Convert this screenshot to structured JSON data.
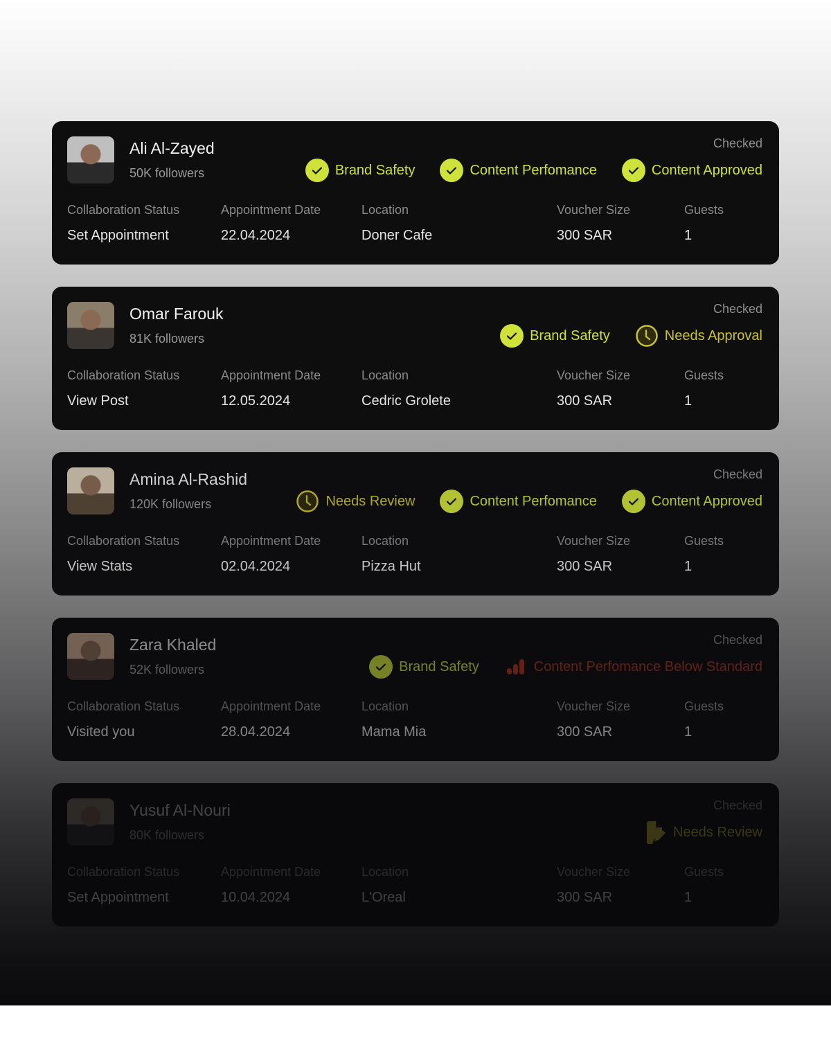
{
  "colors": {
    "accent": "#cfe23a",
    "pending": "#c9c12f",
    "warning": "#a8341f",
    "card": "#0e0e0f"
  },
  "column_labels": {
    "status": "Collaboration Status",
    "date": "Appointment Date",
    "location": "Location",
    "voucher": "Voucher Size",
    "guests": "Guests"
  },
  "cards": [
    {
      "name": "Ali Al-Zayed",
      "followers": "50K followers",
      "checked": "Checked",
      "badges": [
        {
          "icon": "check-circle-icon",
          "label": "Brand Safety",
          "tone": "accent"
        },
        {
          "icon": "check-circle-icon",
          "label": "Content Perfomance",
          "tone": "accent"
        },
        {
          "icon": "check-circle-icon",
          "label": "Content Approved",
          "tone": "accent"
        }
      ],
      "status": "Set Appointment",
      "date": "22.04.2024",
      "location": "Doner Cafe",
      "voucher": "300 SAR",
      "guests": "1"
    },
    {
      "name": "Omar Farouk",
      "followers": "81K followers",
      "checked": "Checked",
      "badges": [
        {
          "icon": "check-circle-icon",
          "label": "Brand Safety",
          "tone": "accent"
        },
        {
          "icon": "clock-icon",
          "label": "Needs Approval",
          "tone": "pending"
        }
      ],
      "status": "View Post",
      "date": "12.05.2024",
      "location": "Cedric Grolete",
      "voucher": "300 SAR",
      "guests": "1"
    },
    {
      "name": "Amina Al-Rashid",
      "followers": "120K followers",
      "checked": "Checked",
      "badges": [
        {
          "icon": "clock-icon",
          "label": "Needs Review",
          "tone": "pending"
        },
        {
          "icon": "check-circle-icon",
          "label": "Content Perfomance",
          "tone": "accent"
        },
        {
          "icon": "check-circle-icon",
          "label": "Content Approved",
          "tone": "accent"
        }
      ],
      "status": "View Stats",
      "date": "02.04.2024",
      "location": "Pizza Hut",
      "voucher": "300 SAR",
      "guests": "1"
    },
    {
      "name": "Zara Khaled",
      "followers": "52K followers",
      "checked": "Checked",
      "badges": [
        {
          "icon": "check-circle-icon",
          "label": "Brand Safety",
          "tone": "accent"
        },
        {
          "icon": "bar-chart-icon",
          "label": "Content Perfomance Below Standard",
          "tone": "warning"
        }
      ],
      "status": "Visited you",
      "date": "28.04.2024",
      "location": "Mama Mia",
      "voucher": "300 SAR",
      "guests": "1"
    },
    {
      "name": "Yusuf Al-Nouri",
      "followers": "80K followers",
      "checked": "Checked",
      "badges": [
        {
          "icon": "document-edit-icon",
          "label": "Needs Review",
          "tone": "pending"
        }
      ],
      "status": "Set Appointment",
      "date": "10.04.2024",
      "location": "L'Oreal",
      "voucher": "300 SAR",
      "guests": "1"
    }
  ]
}
